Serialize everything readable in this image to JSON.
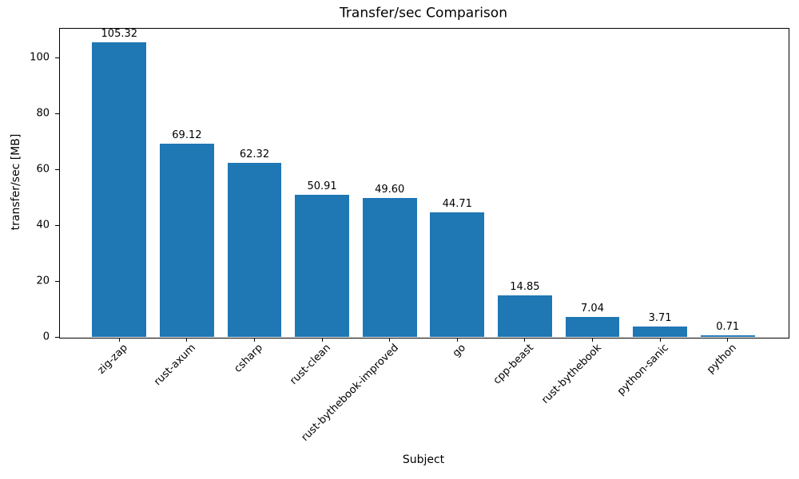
{
  "chart_data": {
    "type": "bar",
    "title": "Transfer/sec Comparison",
    "xlabel": "Subject",
    "ylabel": "transfer/sec [MB]",
    "categories": [
      "zig-zap",
      "rust-axum",
      "csharp",
      "rust-clean",
      "rust-bythebook-improved",
      "go",
      "cpp-beast",
      "rust-bythebook",
      "python-sanic",
      "python"
    ],
    "values": [
      105.32,
      69.12,
      62.32,
      50.91,
      49.6,
      44.71,
      14.85,
      7.04,
      3.71,
      0.71
    ],
    "bar_value_labels": [
      "105.32",
      "69.12",
      "62.32",
      "50.91",
      "49.60",
      "44.71",
      "14.85",
      "7.04",
      "3.71",
      "0.71"
    ],
    "yticks": [
      0,
      20,
      40,
      60,
      80,
      100
    ],
    "ylim": [
      0,
      110.6
    ],
    "xlim_units": [
      -0.89,
      9.89
    ],
    "bar_width_units": 0.8,
    "x_tick_label_rotation_deg": 45,
    "bar_color": "#1f77b4",
    "text_color": "#000000",
    "background_color": "#ffffff",
    "grid": false,
    "legend_position": "none"
  }
}
